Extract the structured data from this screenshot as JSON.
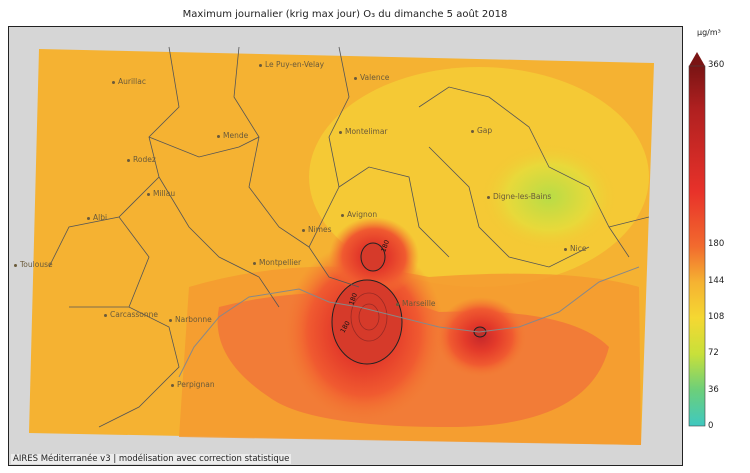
{
  "title": "Maximum journalier (krig max jour) O₃ du dimanche 5 août 2018",
  "footer": "AIRES Méditerranée v3 | modélisation avec correction statistique",
  "colorbar": {
    "unit": "µg/m³",
    "ticks": [
      "360",
      "180",
      "144",
      "108",
      "72",
      "36",
      "0"
    ],
    "colors": [
      "#8b1a1a",
      "#e8322a",
      "#f57a2e",
      "#f5c532",
      "#c8e03a",
      "#5ccf8a",
      "#3fc8c0"
    ]
  },
  "cities": [
    {
      "name": "Aurillac"
    },
    {
      "name": "Le Puy-en-Velay"
    },
    {
      "name": "Valence"
    },
    {
      "name": "Mende"
    },
    {
      "name": "Montelimar"
    },
    {
      "name": "Gap"
    },
    {
      "name": "Rodez"
    },
    {
      "name": "Millau"
    },
    {
      "name": "Digne-les-Bains"
    },
    {
      "name": "Albi"
    },
    {
      "name": "Avignon"
    },
    {
      "name": "Nimes"
    },
    {
      "name": "Nice"
    },
    {
      "name": "Toulouse"
    },
    {
      "name": "Montpellier"
    },
    {
      "name": "Marseille"
    },
    {
      "name": "Carcassonne"
    },
    {
      "name": "Narbonne"
    },
    {
      "name": "Perpignan"
    }
  ],
  "isolines": [
    "180",
    "180",
    "180"
  ]
}
